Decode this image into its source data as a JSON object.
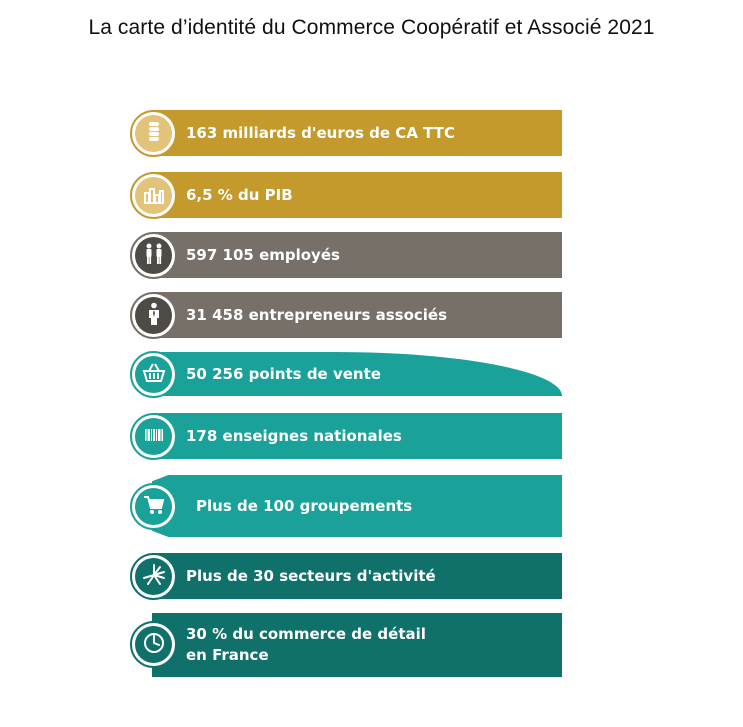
{
  "title": "La carte d’identité du Commerce Coopératif et Associé 2021",
  "colors": {
    "gold": "#c49a2c",
    "gray": "#767069",
    "teal": "#1aa29a",
    "dark_teal": "#10716a"
  },
  "rows": [
    {
      "text": "163 milliards d'euros de CA TTC",
      "icon": "coins-icon",
      "color": "gold"
    },
    {
      "text": "6,5 % du PIB",
      "icon": "bar-chart-icon",
      "color": "gold"
    },
    {
      "text": "597 105 employés",
      "icon": "people-icon",
      "color": "gray"
    },
    {
      "text": "31 458 entrepreneurs associés",
      "icon": "businessman-icon",
      "color": "gray"
    },
    {
      "text": "50 256 points de vente",
      "icon": "basket-icon",
      "color": "teal"
    },
    {
      "text": "178 enseignes nationales",
      "icon": "barcode-icon",
      "color": "teal"
    },
    {
      "text": "Plus de 100 groupements",
      "icon": "cart-icon",
      "color": "teal"
    },
    {
      "text": "Plus de 30 secteurs d'activité",
      "icon": "sunburst-icon",
      "color": "dark_teal"
    },
    {
      "text": "30 % du commerce de détail en France",
      "icon": "clock-icon",
      "color": "dark_teal"
    }
  ]
}
